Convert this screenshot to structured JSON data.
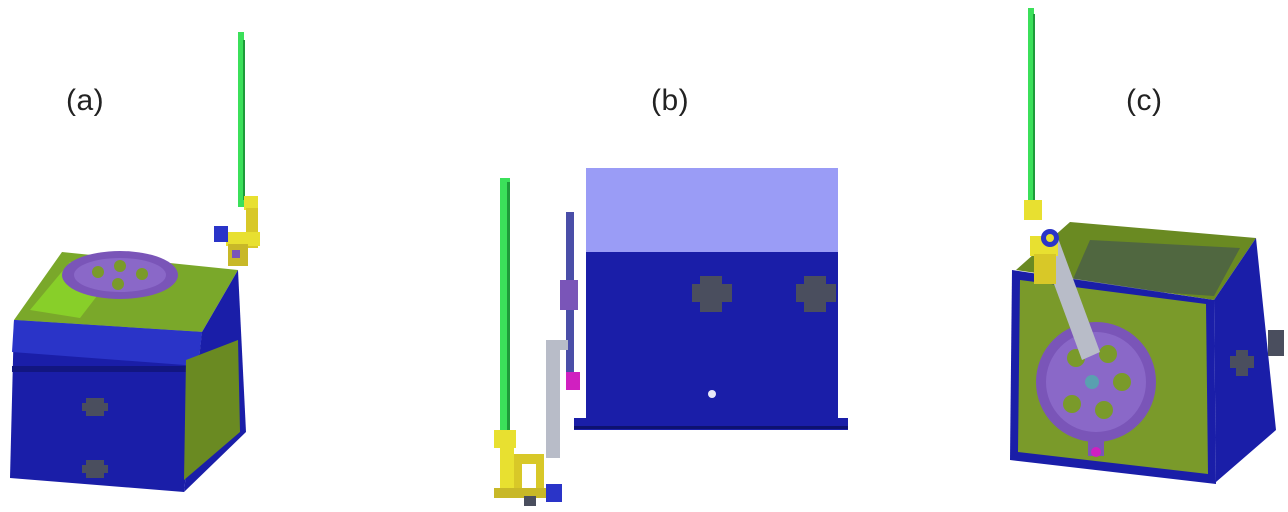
{
  "panels": [
    {
      "label": "(a)"
    },
    {
      "label": "(b)"
    },
    {
      "label": "(c)"
    }
  ],
  "colors": {
    "box_dark_blue": "#1a1ea8",
    "box_light_blue": "#9a9cf6",
    "box_mid_blue": "#2a34c8",
    "face_olive": "#7a9a2a",
    "face_lime": "#8ee02a",
    "disc_purple": "#7a55b8",
    "rod_green": "#3be05a",
    "clamp_yellow": "#e8e030",
    "arm_gray": "#b8bcc8",
    "cutout_gray": "#4a4e5e",
    "accent_magenta": "#d020c0"
  }
}
